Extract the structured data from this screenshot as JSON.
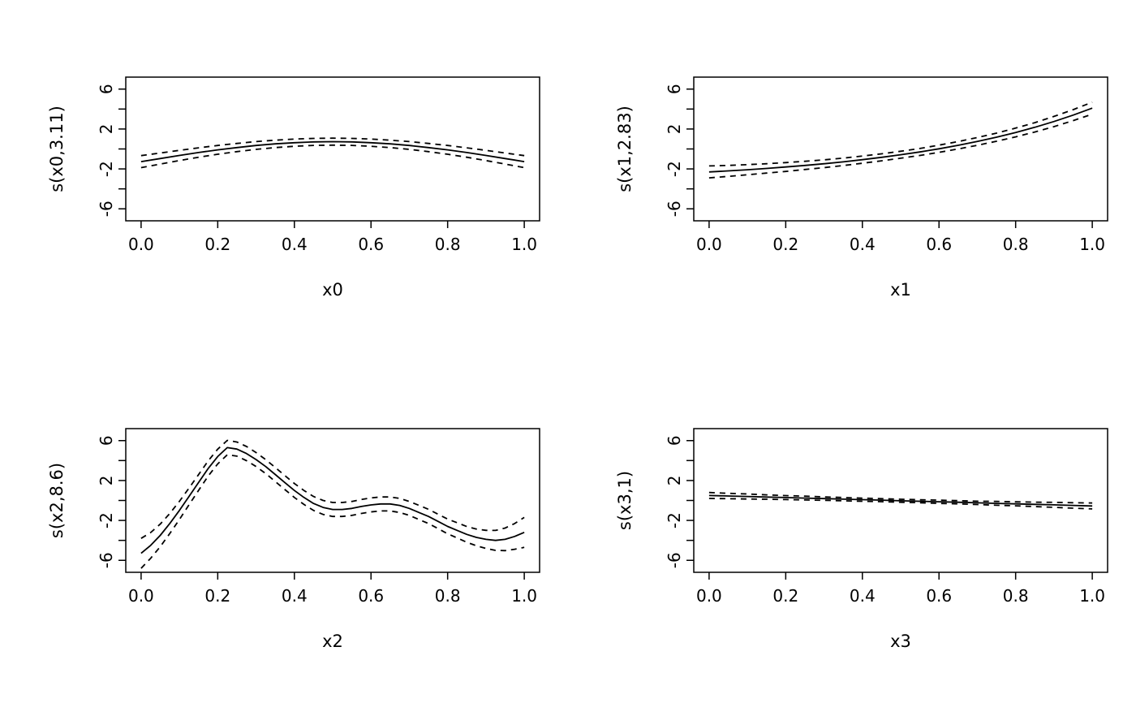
{
  "figure": {
    "background": "#ffffff",
    "stroke_color": "#000000",
    "description": "2x2 grid of GAM smooth term plots with 95% confidence bands (dashed)"
  },
  "chart_data": [
    {
      "type": "line",
      "title": "",
      "xlabel": "x0",
      "ylabel": "s(x0,3.11)",
      "xlim": [
        -0.04,
        1.04
      ],
      "ylim": [
        -7.2,
        7.2
      ],
      "grid": false,
      "legend": "none",
      "xticks": [
        0,
        0.2,
        0.4,
        0.6,
        0.8,
        1.0
      ],
      "xtick_labels": [
        "0.0",
        "0.2",
        "0.4",
        "0.6",
        "0.8",
        "1.0"
      ],
      "yticks": [
        -6,
        -4,
        -2,
        0,
        2,
        4,
        6
      ],
      "ytick_labels": [
        "-6",
        "",
        "-2",
        "",
        "2",
        "",
        "6"
      ],
      "x": [
        0,
        0.05,
        0.1,
        0.15,
        0.2,
        0.25,
        0.3,
        0.35,
        0.4,
        0.45,
        0.5,
        0.55,
        0.6,
        0.65,
        0.7,
        0.75,
        0.8,
        0.85,
        0.9,
        0.95,
        1
      ],
      "series": [
        {
          "name": "fit",
          "style": "solid",
          "values": [
            -1.27,
            -0.96,
            -0.65,
            -0.36,
            -0.09,
            0.14,
            0.35,
            0.51,
            0.63,
            0.71,
            0.73,
            0.71,
            0.63,
            0.51,
            0.35,
            0.14,
            -0.09,
            -0.36,
            -0.65,
            -0.96,
            -1.27
          ]
        },
        {
          "name": "upper-95ci",
          "style": "dashed",
          "values": [
            -0.67,
            -0.41,
            -0.14,
            0.11,
            0.35,
            0.55,
            0.74,
            0.88,
            0.99,
            1.06,
            1.08,
            1.06,
            0.99,
            0.88,
            0.74,
            0.55,
            0.35,
            0.11,
            -0.14,
            -0.41,
            -0.67
          ]
        },
        {
          "name": "lower-95ci",
          "style": "dashed",
          "values": [
            -1.87,
            -1.51,
            -1.16,
            -0.83,
            -0.53,
            -0.27,
            -0.04,
            0.14,
            0.27,
            0.36,
            0.38,
            0.36,
            0.27,
            0.14,
            -0.04,
            -0.27,
            -0.53,
            -0.83,
            -1.16,
            -1.51,
            -1.87
          ]
        }
      ]
    },
    {
      "type": "line",
      "title": "",
      "xlabel": "x1",
      "ylabel": "s(x1,2.83)",
      "xlim": [
        -0.04,
        1.04
      ],
      "ylim": [
        -7.2,
        7.2
      ],
      "grid": false,
      "legend": "none",
      "xticks": [
        0,
        0.2,
        0.4,
        0.6,
        0.8,
        1.0
      ],
      "xtick_labels": [
        "0.0",
        "0.2",
        "0.4",
        "0.6",
        "0.8",
        "1.0"
      ],
      "yticks": [
        -6,
        -4,
        -2,
        0,
        2,
        4,
        6
      ],
      "ytick_labels": [
        "-6",
        "",
        "-2",
        "",
        "2",
        "",
        "6"
      ],
      "x": [
        0,
        0.05,
        0.1,
        0.15,
        0.2,
        0.25,
        0.3,
        0.35,
        0.4,
        0.45,
        0.5,
        0.55,
        0.6,
        0.65,
        0.7,
        0.75,
        0.8,
        0.85,
        0.9,
        0.95,
        1
      ],
      "series": [
        {
          "name": "fit",
          "style": "solid",
          "values": [
            -2.3,
            -2.2,
            -2.08,
            -1.95,
            -1.81,
            -1.65,
            -1.48,
            -1.29,
            -1.07,
            -0.84,
            -0.58,
            -0.3,
            0.02,
            0.37,
            0.76,
            1.18,
            1.65,
            2.17,
            2.75,
            3.39,
            4.09
          ]
        },
        {
          "name": "upper-95ci",
          "style": "dashed",
          "values": [
            -1.7,
            -1.65,
            -1.57,
            -1.48,
            -1.37,
            -1.24,
            -1.09,
            -0.92,
            -0.71,
            -0.49,
            -0.23,
            0.05,
            0.38,
            0.74,
            1.15,
            1.59,
            2.09,
            2.64,
            3.26,
            3.94,
            4.69
          ]
        },
        {
          "name": "lower-95ci",
          "style": "dashed",
          "values": [
            -2.9,
            -2.75,
            -2.59,
            -2.42,
            -2.25,
            -2.06,
            -1.87,
            -1.66,
            -1.43,
            -1.19,
            -0.93,
            -0.65,
            -0.34,
            0.0,
            0.37,
            0.77,
            1.21,
            1.7,
            2.24,
            2.84,
            3.49
          ]
        }
      ]
    },
    {
      "type": "line",
      "title": "",
      "xlabel": "x2",
      "ylabel": "s(x2,8.6)",
      "xlim": [
        -0.04,
        1.04
      ],
      "ylim": [
        -7.2,
        7.2
      ],
      "grid": false,
      "legend": "none",
      "xticks": [
        0,
        0.2,
        0.4,
        0.6,
        0.8,
        1.0
      ],
      "xtick_labels": [
        "0.0",
        "0.2",
        "0.4",
        "0.6",
        "0.8",
        "1.0"
      ],
      "yticks": [
        -6,
        -4,
        -2,
        0,
        2,
        4,
        6
      ],
      "ytick_labels": [
        "-6",
        "",
        "-2",
        "",
        "2",
        "",
        "6"
      ],
      "x": [
        0,
        0.025,
        0.05,
        0.075,
        0.1,
        0.125,
        0.15,
        0.175,
        0.2,
        0.225,
        0.25,
        0.275,
        0.3,
        0.325,
        0.35,
        0.375,
        0.4,
        0.425,
        0.45,
        0.475,
        0.5,
        0.525,
        0.55,
        0.575,
        0.6,
        0.625,
        0.65,
        0.675,
        0.7,
        0.725,
        0.75,
        0.775,
        0.8,
        0.825,
        0.85,
        0.875,
        0.9,
        0.925,
        0.95,
        0.975,
        1
      ],
      "series": [
        {
          "name": "fit",
          "style": "solid",
          "values": [
            -5.3,
            -4.5,
            -3.5,
            -2.3,
            -1.0,
            0.4,
            1.8,
            3.2,
            4.4,
            5.3,
            5.15,
            4.7,
            4.1,
            3.4,
            2.6,
            1.8,
            1.0,
            0.3,
            -0.3,
            -0.7,
            -0.9,
            -0.9,
            -0.8,
            -0.6,
            -0.45,
            -0.35,
            -0.35,
            -0.5,
            -0.8,
            -1.2,
            -1.6,
            -2.1,
            -2.6,
            -3.0,
            -3.4,
            -3.7,
            -3.9,
            -4.0,
            -3.9,
            -3.6,
            -3.2
          ]
        },
        {
          "name": "upper-95ci",
          "style": "dashed",
          "values": [
            -3.8,
            -3.21,
            -2.37,
            -1.3,
            -0.09,
            1.24,
            2.59,
            3.96,
            5.14,
            6.02,
            5.86,
            5.41,
            4.8,
            4.1,
            3.3,
            2.5,
            1.7,
            1.0,
            0.4,
            0.0,
            -0.2,
            -0.2,
            -0.1,
            0.1,
            0.25,
            0.35,
            0.35,
            0.2,
            -0.1,
            -0.49,
            -0.89,
            -1.38,
            -1.86,
            -2.24,
            -2.61,
            -2.86,
            -2.99,
            -3.0,
            -2.77,
            -2.31,
            -1.7
          ]
        },
        {
          "name": "lower-95ci",
          "style": "dashed",
          "values": [
            -6.8,
            -5.79,
            -4.63,
            -3.3,
            -1.91,
            -0.44,
            1.01,
            2.44,
            3.66,
            4.58,
            4.44,
            3.99,
            3.4,
            2.7,
            1.9,
            1.1,
            0.3,
            -0.4,
            -1.0,
            -1.4,
            -1.6,
            -1.6,
            -1.5,
            -1.3,
            -1.15,
            -1.05,
            -1.05,
            -1.2,
            -1.5,
            -1.91,
            -2.31,
            -2.82,
            -3.34,
            -3.76,
            -4.19,
            -4.54,
            -4.81,
            -5.0,
            -5.03,
            -4.89,
            -4.7
          ]
        }
      ]
    },
    {
      "type": "line",
      "title": "",
      "xlabel": "x3",
      "ylabel": "s(x3,1)",
      "xlim": [
        -0.04,
        1.04
      ],
      "ylim": [
        -7.2,
        7.2
      ],
      "grid": false,
      "legend": "none",
      "xticks": [
        0,
        0.2,
        0.4,
        0.6,
        0.8,
        1.0
      ],
      "xtick_labels": [
        "0.0",
        "0.2",
        "0.4",
        "0.6",
        "0.8",
        "1.0"
      ],
      "yticks": [
        -6,
        -4,
        -2,
        0,
        2,
        4,
        6
      ],
      "ytick_labels": [
        "-6",
        "",
        "-2",
        "",
        "2",
        "",
        "6"
      ],
      "x": [
        0,
        0.05,
        0.1,
        0.15,
        0.2,
        0.25,
        0.3,
        0.35,
        0.4,
        0.45,
        0.5,
        0.55,
        0.6,
        0.65,
        0.7,
        0.75,
        0.8,
        0.85,
        0.9,
        0.95,
        1
      ],
      "series": [
        {
          "name": "fit",
          "style": "solid",
          "values": [
            0.5,
            0.45,
            0.4,
            0.34,
            0.29,
            0.24,
            0.19,
            0.13,
            0.08,
            0.03,
            -0.03,
            -0.08,
            -0.13,
            -0.18,
            -0.24,
            -0.29,
            -0.34,
            -0.39,
            -0.44,
            -0.5,
            -0.55
          ]
        },
        {
          "name": "upper-95ci",
          "style": "dashed",
          "values": [
            0.8,
            0.72,
            0.65,
            0.56,
            0.49,
            0.43,
            0.36,
            0.29,
            0.24,
            0.18,
            0.12,
            0.07,
            0.03,
            -0.02,
            -0.07,
            -0.1,
            -0.14,
            -0.17,
            -0.19,
            -0.23,
            -0.25
          ]
        },
        {
          "name": "lower-95ci",
          "style": "dashed",
          "values": [
            0.2,
            0.18,
            0.15,
            0.12,
            0.09,
            0.05,
            0.02,
            -0.03,
            -0.08,
            -0.12,
            -0.18,
            -0.23,
            -0.29,
            -0.34,
            -0.41,
            -0.48,
            -0.54,
            -0.61,
            -0.69,
            -0.77,
            -0.85
          ]
        }
      ]
    }
  ]
}
